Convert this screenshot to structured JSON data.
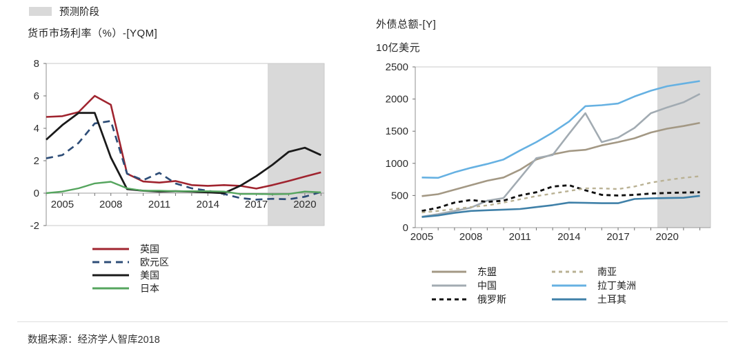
{
  "forecast_legend": {
    "label": "预测阶段",
    "swatch_color": "#d9d9d9"
  },
  "source": "数据来源：经济学人智库2018",
  "chart_data": [
    {
      "type": "line",
      "title": "货币市场利率（%）-[YQM]",
      "xlabel": "",
      "ylabel": "",
      "x_years": [
        2004,
        2005,
        2006,
        2007,
        2008,
        2009,
        2010,
        2011,
        2012,
        2013,
        2014,
        2015,
        2016,
        2017,
        2018,
        2019,
        2020,
        2021
      ],
      "x_tick_labels": [
        2005,
        2008,
        2011,
        2014,
        2017,
        2020
      ],
      "ylim": [
        -2,
        8
      ],
      "y_tick_labels": [
        8,
        6,
        4,
        2,
        0,
        -2
      ],
      "forecast_start_year": 2017.7,
      "grid": false,
      "legend_position": "bottom-left",
      "legend_columns": [
        [
          0,
          1,
          2,
          3
        ]
      ],
      "series": [
        {
          "key": "uk",
          "name": "英国",
          "color": "#a0242f",
          "width": 2.6,
          "values": [
            4.7,
            4.75,
            5.0,
            6.0,
            5.45,
            1.2,
            0.72,
            0.65,
            0.75,
            0.5,
            0.45,
            0.5,
            0.45,
            0.28,
            0.5,
            0.75,
            1.02,
            1.28
          ]
        },
        {
          "key": "eurozone",
          "name": "欧元区",
          "color": "#2e4d77",
          "dash": "10,7",
          "width": 2.7,
          "values": [
            2.15,
            2.35,
            3.1,
            4.3,
            4.45,
            1.2,
            0.8,
            1.25,
            0.6,
            0.3,
            0.15,
            -0.05,
            -0.3,
            -0.4,
            -0.35,
            -0.38,
            -0.22,
            0.07
          ]
        },
        {
          "key": "us",
          "name": "美国",
          "color": "#1a1a1a",
          "width": 2.8,
          "values": [
            3.3,
            4.2,
            4.95,
            4.95,
            2.2,
            0.25,
            0.15,
            0.1,
            0.12,
            0.1,
            0.05,
            0.0,
            0.45,
            1.05,
            1.75,
            2.55,
            2.8,
            2.35
          ]
        },
        {
          "key": "japan",
          "name": "日本",
          "color": "#55a55e",
          "width": 2.4,
          "values": [
            0.0,
            0.1,
            0.3,
            0.6,
            0.7,
            0.3,
            0.15,
            0.15,
            0.12,
            0.12,
            0.12,
            0.1,
            -0.05,
            -0.05,
            -0.07,
            -0.05,
            0.1,
            0.05
          ]
        }
      ]
    },
    {
      "type": "line",
      "title": "外债总额-[Y]",
      "subtitle": "10亿美元",
      "xlabel": "",
      "ylabel": "",
      "x_years": [
        2005,
        2006,
        2007,
        2008,
        2009,
        2010,
        2011,
        2012,
        2013,
        2014,
        2015,
        2016,
        2017,
        2018,
        2019,
        2020,
        2021,
        2022
      ],
      "x_tick_labels": [
        2005,
        2008,
        2011,
        2014,
        2017,
        2020
      ],
      "ylim": [
        0,
        2500
      ],
      "y_tick_labels": [
        2500,
        2000,
        1500,
        1000,
        500,
        0
      ],
      "forecast_start_year": 2019.4,
      "grid": false,
      "legend_position": "bottom",
      "legend_columns": [
        [
          0,
          1,
          2
        ],
        [
          3,
          4,
          5
        ]
      ],
      "series": [
        {
          "key": "asean",
          "name": "东盟",
          "color": "#a39884",
          "width": 2.6,
          "values": [
            490,
            520,
            590,
            660,
            730,
            780,
            900,
            1060,
            1140,
            1190,
            1210,
            1280,
            1330,
            1390,
            1480,
            1540,
            1580,
            1630
          ]
        },
        {
          "key": "china",
          "name": "中国",
          "color": "#a2abb2",
          "width": 2.6,
          "values": [
            170,
            210,
            260,
            310,
            420,
            460,
            770,
            1080,
            1130,
            1460,
            1780,
            1330,
            1400,
            1550,
            1780,
            1870,
            1950,
            2080
          ]
        },
        {
          "key": "russia",
          "name": "俄罗斯",
          "color": "#111111",
          "dash": "6,5",
          "width": 2.9,
          "values": [
            260,
            310,
            390,
            430,
            400,
            420,
            500,
            550,
            640,
            660,
            580,
            510,
            500,
            510,
            530,
            540,
            545,
            550
          ]
        },
        {
          "key": "south-asia",
          "name": "南亚",
          "color": "#b9b193",
          "dash": "5,5",
          "width": 2.4,
          "values": [
            235,
            260,
            290,
            320,
            345,
            390,
            440,
            490,
            530,
            570,
            610,
            610,
            600,
            640,
            700,
            740,
            775,
            800
          ]
        },
        {
          "key": "latin-america",
          "name": "拉丁美洲",
          "color": "#66b1e2",
          "width": 2.6,
          "values": [
            780,
            775,
            860,
            930,
            990,
            1060,
            1200,
            1330,
            1480,
            1650,
            1890,
            1905,
            1930,
            2040,
            2130,
            2200,
            2240,
            2280
          ]
        },
        {
          "key": "turkey",
          "name": "土耳其",
          "color": "#3f80a8",
          "width": 2.6,
          "values": [
            165,
            190,
            230,
            260,
            270,
            280,
            290,
            320,
            350,
            390,
            385,
            380,
            380,
            445,
            455,
            460,
            465,
            495
          ]
        }
      ]
    }
  ]
}
